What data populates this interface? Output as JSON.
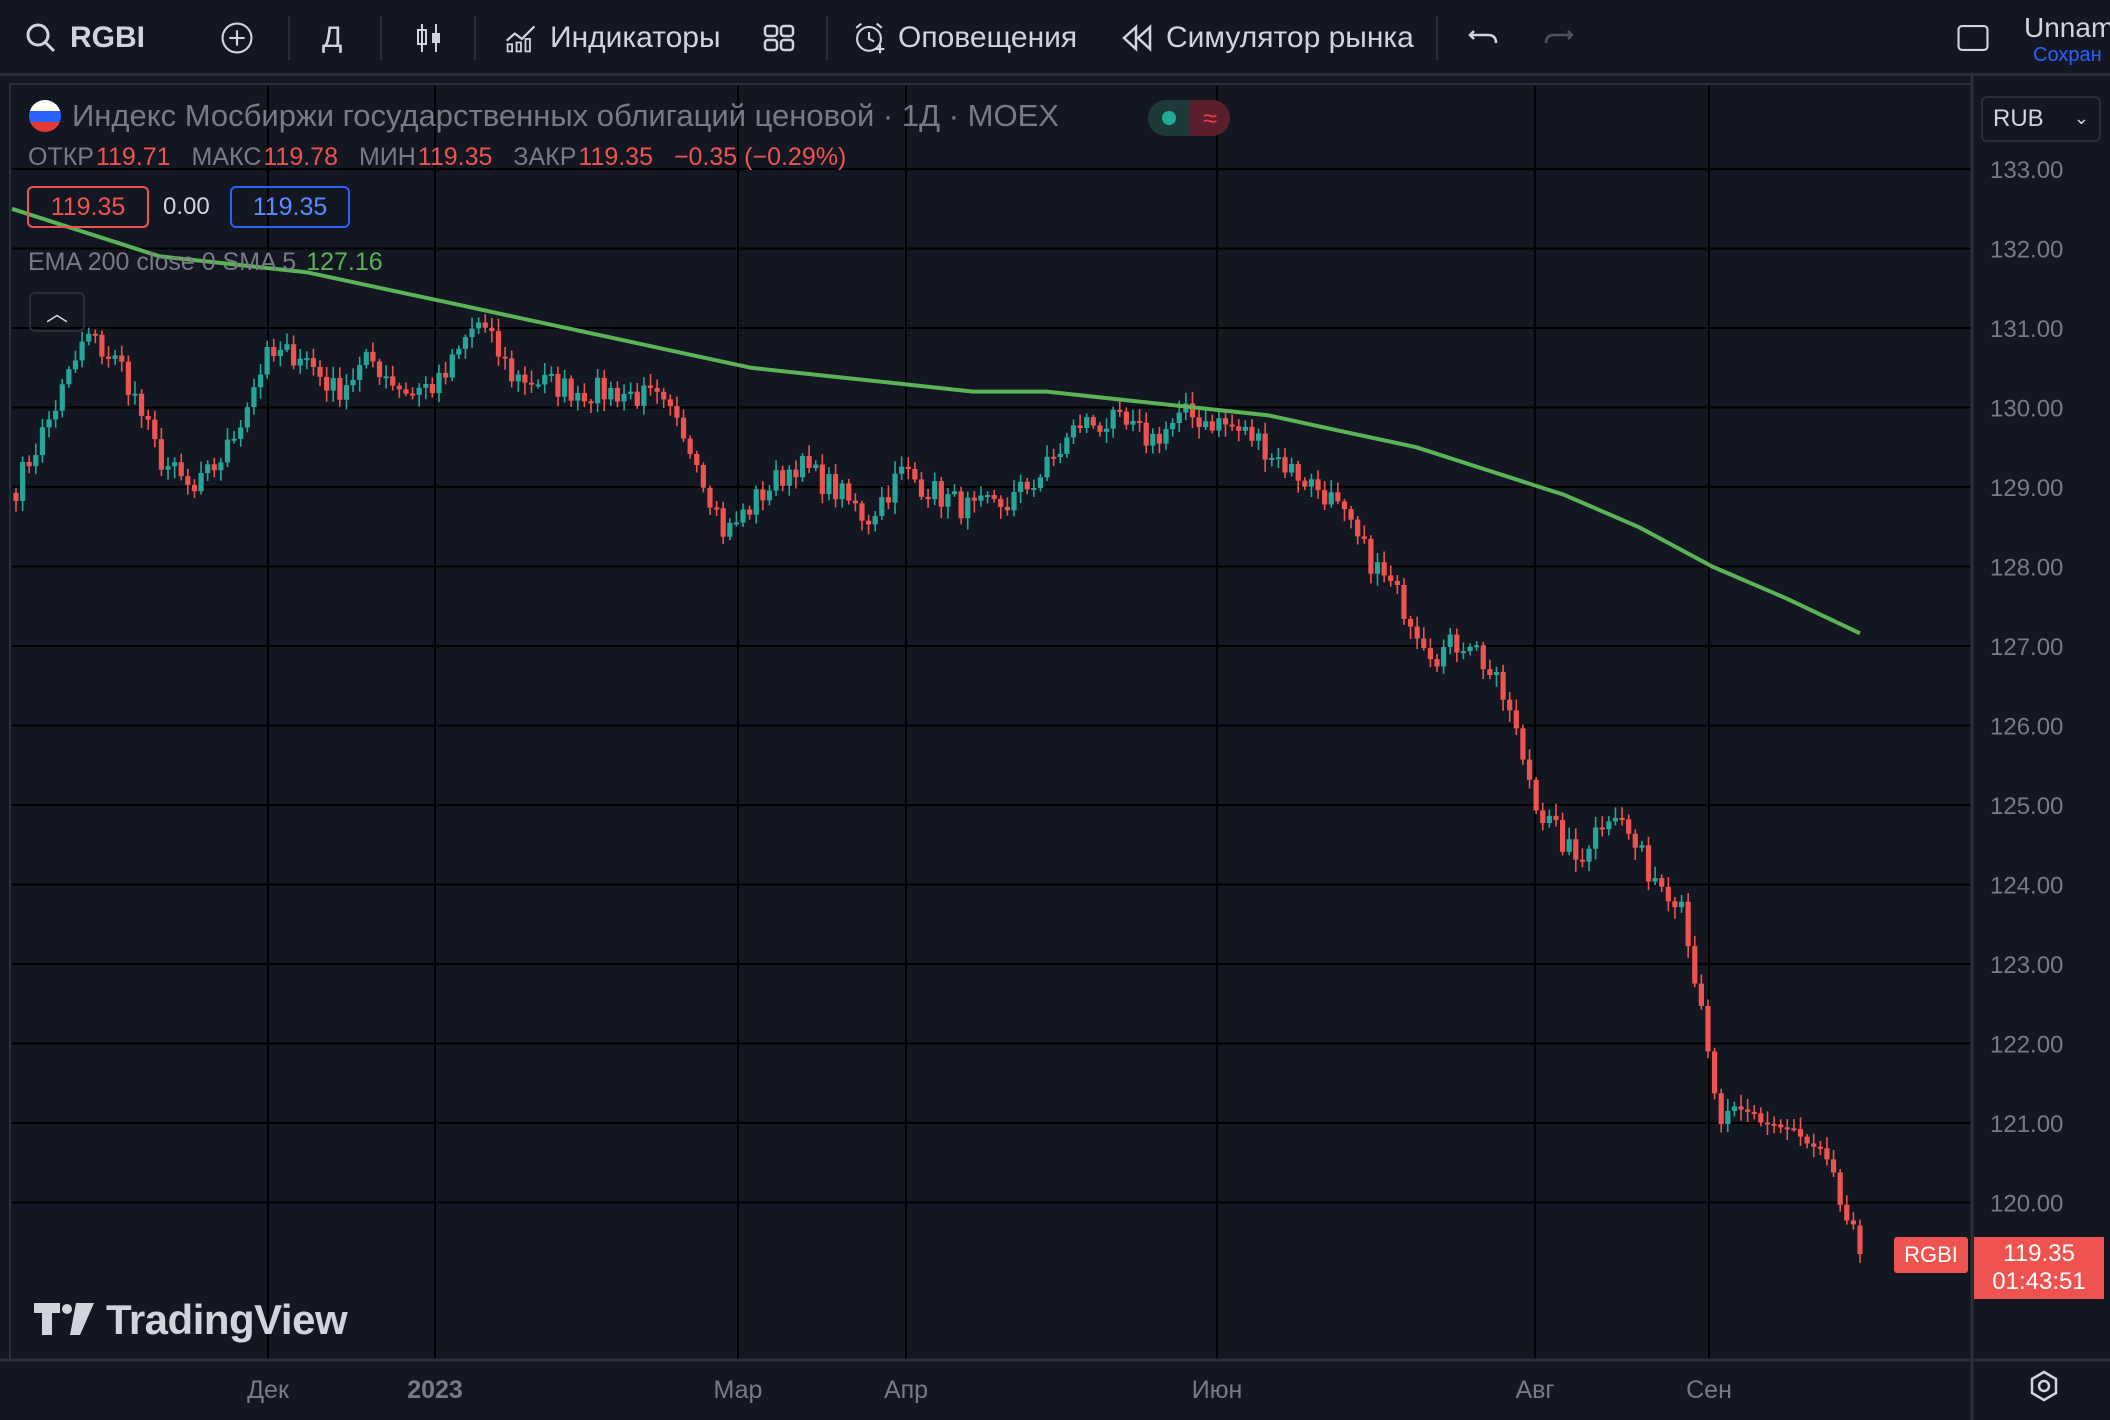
{
  "toolbar": {
    "symbol": "RGBI",
    "interval": "Д",
    "indicators_label": "Индикаторы",
    "alerts_label": "Оповещения",
    "replay_label": "Симулятор рынка",
    "layout_name": "Unnam",
    "save_label": "Сохран"
  },
  "legend": {
    "title": "Индекс Мосбиржи государственных облигаций ценовой · 1Д · MOEX",
    "ohlc": [
      {
        "key": "ОТКР",
        "value": "119.71"
      },
      {
        "key": "МАКС",
        "value": "119.78"
      },
      {
        "key": "МИН",
        "value": "119.35"
      },
      {
        "key": "ЗАКР",
        "value": "119.35"
      }
    ],
    "change": "−0.35 (−0.29%)",
    "bid": "119.35",
    "spread": "0.00",
    "ask": "119.35",
    "indicator_label": "EMA 200 close 0 SMA 5",
    "indicator_value": "127.16"
  },
  "currency": "RUB",
  "last_price": {
    "symbol": "RGBI",
    "price": "119.35",
    "countdown": "01:43:51"
  },
  "brand": "TradingView",
  "colors": {
    "background": "#131722",
    "up": "#26a69a",
    "down": "#ef5350",
    "ema": "#5ab356",
    "grid": "#000000"
  },
  "chart_data": {
    "type": "candlestick",
    "title": "Индекс Мосбиржи государственных облигаций ценовой · 1Д · MOEX",
    "ylim": [
      118.5,
      133.5
    ],
    "y_ticks": [
      "133.00",
      "132.00",
      "131.00",
      "130.00",
      "129.00",
      "128.00",
      "127.00",
      "126.00",
      "125.00",
      "124.00",
      "123.00",
      "122.00",
      "121.00",
      "120.00"
    ],
    "x_ticks": [
      "Дек",
      "2023",
      "Мар",
      "Апр",
      "Июн",
      "Авг",
      "Сен"
    ],
    "close_series": [
      129.0,
      129.9,
      130.9,
      130.5,
      129.4,
      128.9,
      129.5,
      130.6,
      130.7,
      130.2,
      130.6,
      130.2,
      130.3,
      131.1,
      130.4,
      130.3,
      130.2,
      130.2,
      130.1,
      129.6,
      128.4,
      128.9,
      129.3,
      129.0,
      128.6,
      129.2,
      128.9,
      128.7,
      128.8,
      129.2,
      129.8,
      129.8,
      129.6,
      129.9,
      129.8,
      129.6,
      129.2,
      128.9,
      128.2,
      127.6,
      126.9,
      127.1,
      126.3,
      124.9,
      124.3,
      125.0,
      124.2,
      123.8,
      121.0,
      121.1,
      120.9,
      120.5,
      119.35
    ],
    "ema_series": [
      132.5,
      132.2,
      131.9,
      131.8,
      131.7,
      131.5,
      131.3,
      131.1,
      130.9,
      130.7,
      130.5,
      130.4,
      130.3,
      130.2,
      130.2,
      130.1,
      130.0,
      129.9,
      129.7,
      129.5,
      129.2,
      128.9,
      128.5,
      128.0,
      127.6,
      127.16
    ],
    "ema_label": "EMA 200 close 0 SMA 5",
    "ema_last": 127.16,
    "last": 119.35
  }
}
